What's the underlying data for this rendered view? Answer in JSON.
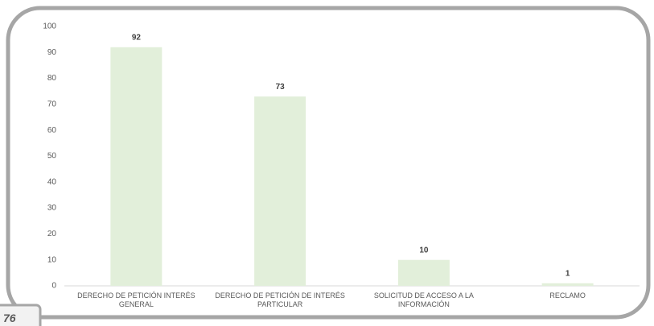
{
  "chart_data": {
    "type": "bar",
    "categories": [
      "DERECHO DE PETICIÓN INTERÉS GENERAL",
      "DERECHO DE PETICIÓN DE INTERÉS PARTICULAR",
      "SOLICITUD DE ACCESO A LA INFORMACIÓN",
      "RECLAMO"
    ],
    "values": [
      92,
      73,
      10,
      1
    ],
    "color": "#e2efda",
    "ylim": [
      0,
      100
    ],
    "yticks": [
      0,
      10,
      20,
      30,
      40,
      50,
      60,
      70,
      80,
      90,
      100
    ],
    "grid": false
  },
  "page_number": "76"
}
